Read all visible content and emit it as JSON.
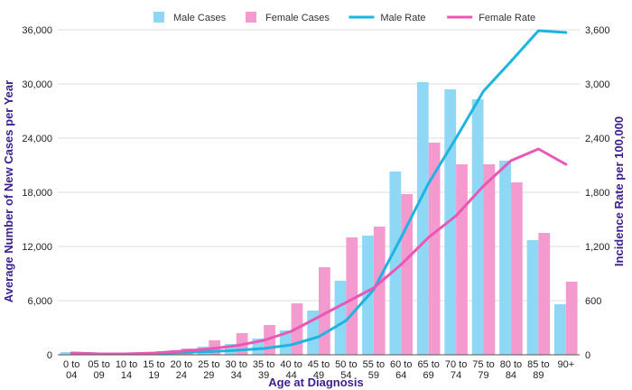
{
  "chart_data": {
    "type": "bar",
    "categories": [
      [
        "0 to",
        "04"
      ],
      [
        "05 to",
        "09"
      ],
      [
        "10 to",
        "14"
      ],
      [
        "15 to",
        "19"
      ],
      [
        "20 to",
        "24"
      ],
      [
        "25 to",
        "29"
      ],
      [
        "30 to",
        "34"
      ],
      [
        "35 to",
        "39"
      ],
      [
        "40 to",
        "44"
      ],
      [
        "45 to",
        "49"
      ],
      [
        "50 to",
        "54"
      ],
      [
        "55 to",
        "59"
      ],
      [
        "60 to",
        "64"
      ],
      [
        "65 to",
        "69"
      ],
      [
        "70 to",
        "74"
      ],
      [
        "75 to",
        "79"
      ],
      [
        "80 to",
        "84"
      ],
      [
        "85 to",
        "89"
      ],
      [
        "90+"
      ]
    ],
    "xlabel": "Age at Diagnosis",
    "ylabel": "Average Number of New Cases per Year",
    "y2label": "Incidence Rate per 100,000",
    "ylim": [
      0,
      36000
    ],
    "y2lim": [
      0,
      3600
    ],
    "yticks": [
      "0",
      "6,000",
      "12,000",
      "18,000",
      "24,000",
      "30,000",
      "36,000"
    ],
    "y2ticks": [
      "0",
      "600",
      "1,200",
      "1,800",
      "2,400",
      "3,000",
      "3,600"
    ],
    "series": [
      {
        "name": "Male Cases",
        "kind": "bar",
        "axis": "left",
        "color": "#8ed8f5",
        "values": [
          300,
          150,
          150,
          250,
          500,
          900,
          1200,
          1800,
          2700,
          4900,
          8200,
          13200,
          20300,
          30200,
          29400,
          28300,
          21500,
          12700,
          5600
        ]
      },
      {
        "name": "Female Cases",
        "kind": "bar",
        "axis": "left",
        "color": "#f39acf",
        "values": [
          300,
          150,
          150,
          350,
          700,
          1600,
          2400,
          3300,
          5700,
          9700,
          13000,
          14200,
          17800,
          23500,
          21100,
          21100,
          19100,
          13500,
          8100
        ]
      },
      {
        "name": "Male Rate",
        "kind": "line",
        "axis": "right",
        "color": "#1eb4e0",
        "values": [
          20,
          10,
          10,
          15,
          25,
          35,
          50,
          70,
          110,
          200,
          380,
          720,
          1300,
          1900,
          2400,
          2920,
          3250,
          3590,
          3570
        ]
      },
      {
        "name": "Female Rate",
        "kind": "line",
        "axis": "right",
        "color": "#e858b4",
        "values": [
          20,
          10,
          10,
          20,
          40,
          65,
          100,
          160,
          260,
          420,
          580,
          740,
          1000,
          1300,
          1540,
          1870,
          2150,
          2280,
          2110
        ]
      }
    ],
    "legend": "top-center"
  }
}
